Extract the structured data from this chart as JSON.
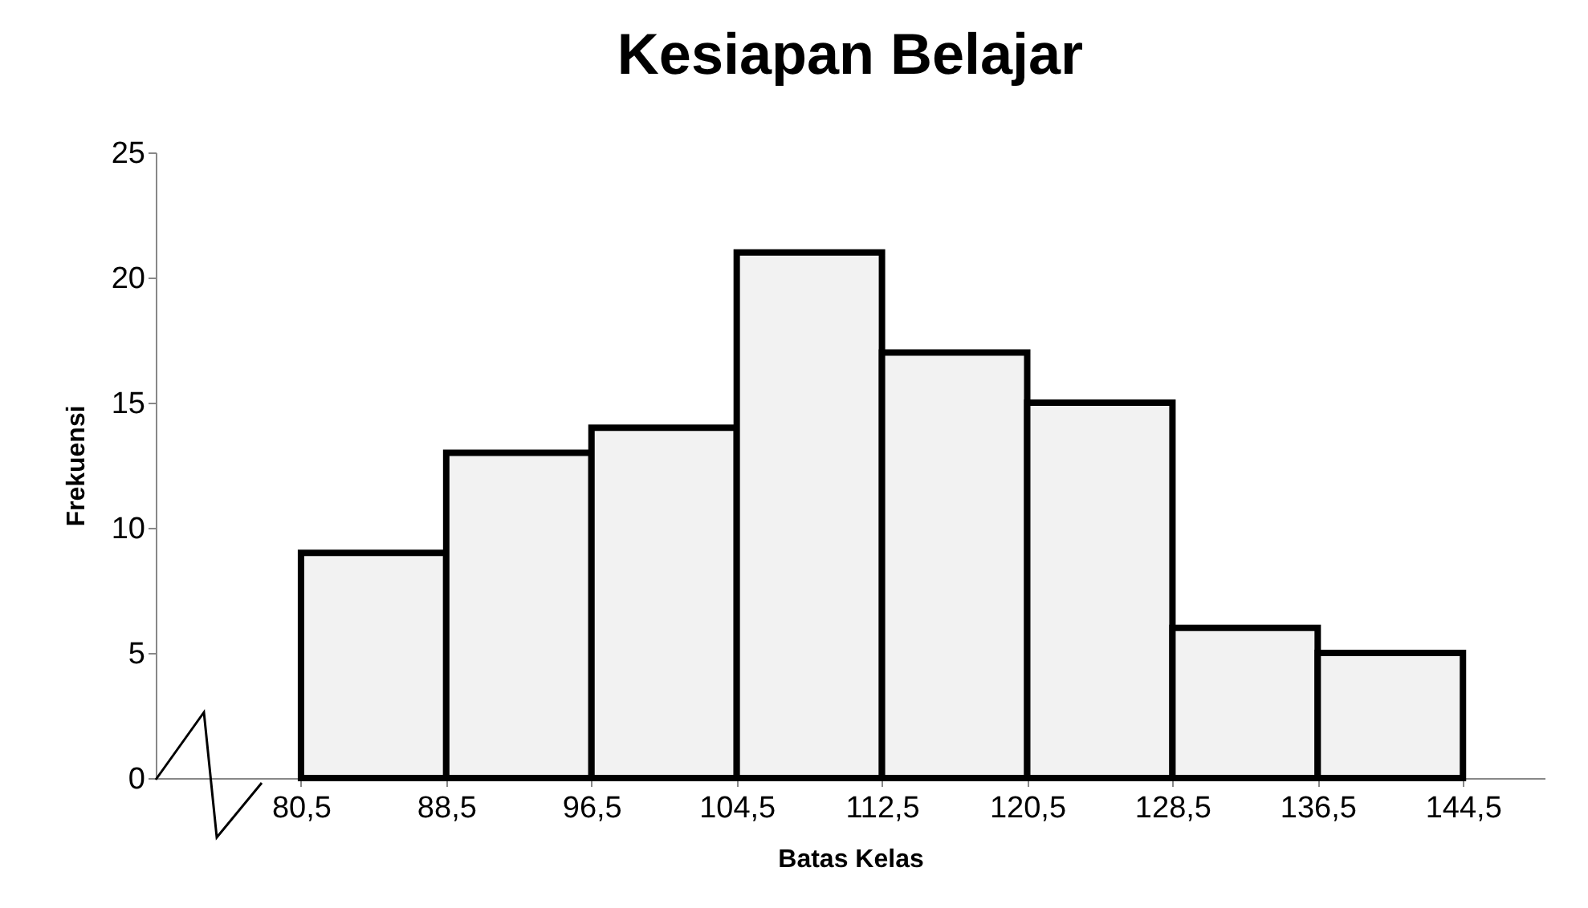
{
  "chart_data": {
    "type": "histogram",
    "title": "Kesiapan Belajar",
    "xlabel": "Batas Kelas",
    "ylabel": "Frekuensi",
    "bins": [
      80.5,
      88.5,
      96.5,
      104.5,
      112.5,
      120.5,
      128.5,
      136.5,
      144.5
    ],
    "values": [
      9,
      13,
      14,
      21,
      17,
      15,
      6,
      5
    ],
    "color": "#f2f2f2",
    "xlim": [
      72.5,
      149
    ],
    "xticks": [
      {
        "value": 80.5,
        "label": "80,5"
      },
      {
        "value": 88.5,
        "label": "88,5"
      },
      {
        "value": 96.5,
        "label": "96,5"
      },
      {
        "value": 104.5,
        "label": "104,5"
      },
      {
        "value": 112.5,
        "label": "112,5"
      },
      {
        "value": 120.5,
        "label": "120,5"
      },
      {
        "value": 128.5,
        "label": "128,5"
      },
      {
        "value": 136.5,
        "label": "136,5"
      },
      {
        "value": 144.5,
        "label": "144,5"
      }
    ],
    "ylim": [
      0,
      25
    ],
    "yticks": [
      0,
      5,
      10,
      15,
      20,
      25
    ],
    "grid": false
  }
}
